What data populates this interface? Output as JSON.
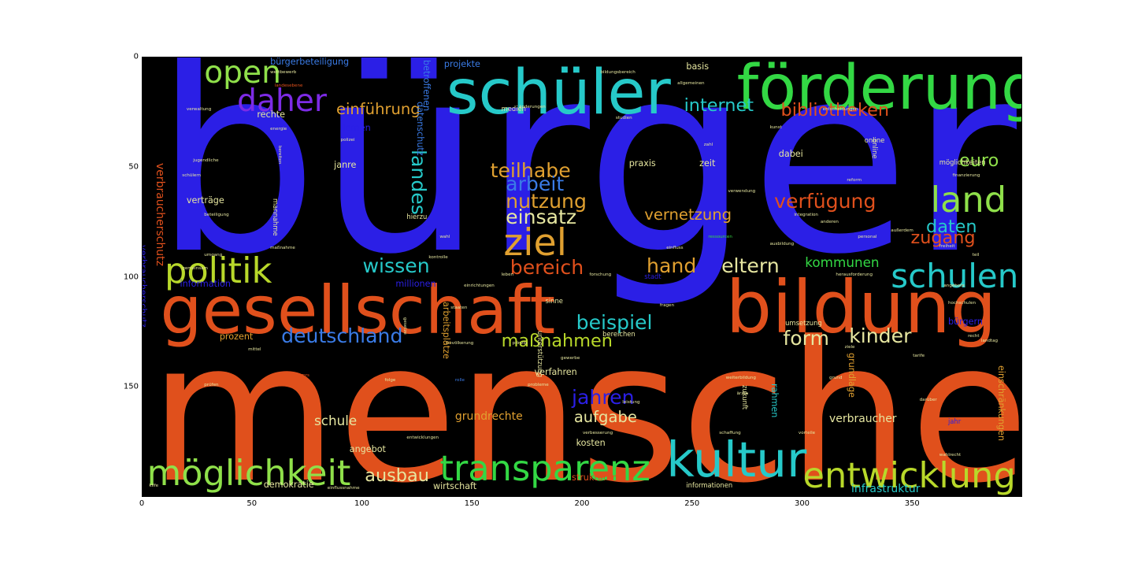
{
  "chart_data": {
    "type": "wordcloud",
    "xlim": [
      0,
      400
    ],
    "ylim": [
      200,
      0
    ],
    "x_ticks": [
      "0",
      "50",
      "100",
      "150",
      "200",
      "250",
      "300",
      "350"
    ],
    "y_ticks": [
      "0",
      "50",
      "100",
      "150"
    ],
    "grid": false,
    "words": [
      {
        "text": "bürger",
        "x": 5,
        "y": -12,
        "size": 118,
        "color": "#2b1fe6"
      },
      {
        "text": "menschen",
        "x": 3,
        "y": 118,
        "size": 88,
        "color": "#e0501c"
      },
      {
        "text": "gesellschaft",
        "x": 8,
        "y": 100,
        "size": 30,
        "color": "#e0501c"
      },
      {
        "text": "bildung",
        "x": 265,
        "y": 97,
        "size": 33,
        "color": "#e0501c"
      },
      {
        "text": "schüler",
        "x": 138,
        "y": 2,
        "size": 28,
        "color": "#26c9c9"
      },
      {
        "text": "förderung",
        "x": 270,
        "y": 0,
        "size": 28,
        "color": "#33d844"
      },
      {
        "text": "kultur",
        "x": 238,
        "y": 172,
        "size": 22,
        "color": "#26c9c9"
      },
      {
        "text": "entwicklung",
        "x": 300,
        "y": 182,
        "size": 16,
        "color": "#b8d82a"
      },
      {
        "text": "möglichkeit",
        "x": 2,
        "y": 181,
        "size": 16,
        "color": "#8fe04a"
      },
      {
        "text": "transparenz",
        "x": 135,
        "y": 179,
        "size": 16,
        "color": "#33d844"
      },
      {
        "text": "schulen",
        "x": 340,
        "y": 92,
        "size": 15,
        "color": "#26c9c9"
      },
      {
        "text": "politik",
        "x": 10,
        "y": 89,
        "size": 16,
        "color": "#b8d82a"
      },
      {
        "text": "ziel",
        "x": 164,
        "y": 76,
        "size": 17,
        "color": "#e0a030"
      },
      {
        "text": "land",
        "x": 358,
        "y": 57,
        "size": 16,
        "color": "#8fe04a"
      },
      {
        "text": "open",
        "x": 28,
        "y": 0,
        "size": 14,
        "color": "#8fe04a"
      },
      {
        "text": "daher",
        "x": 43,
        "y": 13,
        "size": 14,
        "color": "#7d2be6"
      },
      {
        "text": "deutschland",
        "x": 63,
        "y": 122,
        "size": 9,
        "color": "#3a7be6"
      },
      {
        "text": "beispiel",
        "x": 197,
        "y": 116,
        "size": 9,
        "color": "#26c9c9"
      },
      {
        "text": "maßnahmen",
        "x": 163,
        "y": 125,
        "size": 8,
        "color": "#b8d82a"
      },
      {
        "text": "form",
        "x": 291,
        "y": 123,
        "size": 9,
        "color": "#e6e6a0"
      },
      {
        "text": "kinder",
        "x": 321,
        "y": 122,
        "size": 9,
        "color": "#e6e6a0"
      },
      {
        "text": "wissen",
        "x": 100,
        "y": 90,
        "size": 9,
        "color": "#26c9c9"
      },
      {
        "text": "bereich",
        "x": 167,
        "y": 91,
        "size": 9,
        "color": "#e0501c"
      },
      {
        "text": "hand",
        "x": 229,
        "y": 90,
        "size": 9,
        "color": "#e0a030"
      },
      {
        "text": "eltern",
        "x": 263,
        "y": 90,
        "size": 9,
        "color": "#e6e6a0"
      },
      {
        "text": "kommunen",
        "x": 301,
        "y": 90,
        "size": 6,
        "color": "#33d844"
      },
      {
        "text": "daten",
        "x": 356,
        "y": 73,
        "size": 8,
        "color": "#26c9c9"
      },
      {
        "text": "zugang",
        "x": 349,
        "y": 78,
        "size": 8,
        "color": "#e0501c"
      },
      {
        "text": "euro",
        "x": 371,
        "y": 43,
        "size": 8,
        "color": "#8fe04a"
      },
      {
        "text": "verfügung",
        "x": 287,
        "y": 61,
        "size": 9,
        "color": "#e0501c"
      },
      {
        "text": "vernetzung",
        "x": 228,
        "y": 68,
        "size": 7,
        "color": "#e0a030"
      },
      {
        "text": "teilhabe",
        "x": 158,
        "y": 47,
        "size": 9,
        "color": "#e0a030"
      },
      {
        "text": "arbeit",
        "x": 165,
        "y": 53,
        "size": 9,
        "color": "#3a7be6"
      },
      {
        "text": "nutzung",
        "x": 165,
        "y": 61,
        "size": 9,
        "color": "#e0a030"
      },
      {
        "text": "einsatz",
        "x": 165,
        "y": 68,
        "size": 9,
        "color": "#e6e6a0"
      },
      {
        "text": "internet",
        "x": 246,
        "y": 18,
        "size": 8,
        "color": "#26c9c9"
      },
      {
        "text": "bibliotheken",
        "x": 290,
        "y": 20,
        "size": 8,
        "color": "#e0501c"
      },
      {
        "text": "einführung",
        "x": 88,
        "y": 20,
        "size": 7,
        "color": "#e0a030"
      },
      {
        "text": "jahren",
        "x": 195,
        "y": 150,
        "size": 9,
        "color": "#2b1fe6"
      },
      {
        "text": "aufgabe",
        "x": 196,
        "y": 160,
        "size": 7,
        "color": "#e6e6a0"
      },
      {
        "text": "ausbau",
        "x": 101,
        "y": 186,
        "size": 8,
        "color": "#e6e6a0"
      },
      {
        "text": "schule",
        "x": 78,
        "y": 162,
        "size": 6,
        "color": "#e6e6a0"
      },
      {
        "text": "grundrechte",
        "x": 142,
        "y": 161,
        "size": 5,
        "color": "#e0a030"
      },
      {
        "text": "verbraucher",
        "x": 312,
        "y": 162,
        "size": 5,
        "color": "#e6e6a0"
      },
      {
        "text": "infrastruktur",
        "x": 322,
        "y": 194,
        "size": 5,
        "color": "#26c9c9"
      },
      {
        "text": "demokratie",
        "x": 55,
        "y": 192,
        "size": 4,
        "color": "#e6e6a0"
      },
      {
        "text": "wirtschaft",
        "x": 132,
        "y": 193,
        "size": 4,
        "color": "#e6e6a0"
      },
      {
        "text": "angebot",
        "x": 94,
        "y": 176,
        "size": 4,
        "color": "#e6e6a0"
      },
      {
        "text": "kosten",
        "x": 197,
        "y": 173,
        "size": 4,
        "color": "#e6e6a0"
      },
      {
        "text": "strukturen",
        "x": 195,
        "y": 189,
        "size": 4,
        "color": "#e0501c"
      },
      {
        "text": "informationen",
        "x": 247,
        "y": 193,
        "size": 3,
        "color": "#e6e6a0"
      },
      {
        "text": "verfahren",
        "x": 178,
        "y": 141,
        "size": 4,
        "color": "#e6e6a0"
      },
      {
        "text": "prozent",
        "x": 35,
        "y": 125,
        "size": 4,
        "color": "#e0a030"
      },
      {
        "text": "millionen",
        "x": 115,
        "y": 101,
        "size": 4,
        "color": "#2b1fe6"
      },
      {
        "text": "information",
        "x": 17,
        "y": 101,
        "size": 4,
        "color": "#2b1fe6"
      },
      {
        "text": "praxis",
        "x": 221,
        "y": 46,
        "size": 4,
        "color": "#e6e6a0"
      },
      {
        "text": "zeit",
        "x": 253,
        "y": 46,
        "size": 4,
        "color": "#e6e6a0"
      },
      {
        "text": "dabei",
        "x": 289,
        "y": 42,
        "size": 4,
        "color": "#e6e6a0"
      },
      {
        "text": "verträge",
        "x": 20,
        "y": 63,
        "size": 4,
        "color": "#e6e6a0"
      },
      {
        "text": "janre",
        "x": 87,
        "y": 47,
        "size": 4,
        "color": "#e6e6a0"
      },
      {
        "text": "lernen",
        "x": 91,
        "y": 30,
        "size": 4,
        "color": "#2b1fe6"
      },
      {
        "text": "rechte",
        "x": 52,
        "y": 24,
        "size": 4,
        "color": "#e6e6a0"
      },
      {
        "text": "basis",
        "x": 247,
        "y": 2,
        "size": 4,
        "color": "#e6e6a0"
      },
      {
        "text": "projekte",
        "x": 137,
        "y": 1,
        "size": 4,
        "color": "#3a7be6"
      },
      {
        "text": "bürgerbeteiligung",
        "x": 58,
        "y": 0,
        "size": 4,
        "color": "#3a7be6"
      },
      {
        "text": "medien",
        "x": 163,
        "y": 22,
        "size": 3,
        "color": "#e6e6a0"
      },
      {
        "text": "hierzu",
        "x": 120,
        "y": 71,
        "size": 3,
        "color": "#e6e6a0"
      },
      {
        "text": "umsetzung",
        "x": 292,
        "y": 119,
        "size": 3,
        "color": "#e6e6a0"
      },
      {
        "text": "bereichen",
        "x": 209,
        "y": 124,
        "size": 3,
        "color": "#e6e6a0"
      },
      {
        "text": "bürgern",
        "x": 366,
        "y": 118,
        "size": 4,
        "color": "#2b1fe6"
      },
      {
        "text": "möglichkeiten",
        "x": 362,
        "y": 46,
        "size": 3,
        "color": "#e6e6a0"
      },
      {
        "text": "jahr",
        "x": 366,
        "y": 164,
        "size": 3,
        "color": "#2b1fe6"
      },
      {
        "text": "grund",
        "x": 312,
        "y": 145,
        "size": 2,
        "color": "#e6e6a0"
      },
      {
        "text": "sinne",
        "x": 183,
        "y": 109,
        "size": 3,
        "color": "#e6e6a0"
      },
      {
        "text": "folge",
        "x": 110,
        "y": 146,
        "size": 2,
        "color": "#e6e6a0"
      },
      {
        "text": "rolle",
        "x": 142,
        "y": 146,
        "size": 2,
        "color": "#3a7be6"
      },
      {
        "text": "probleme",
        "x": 175,
        "y": 148,
        "size": 2,
        "color": "#e6e6a0"
      },
      {
        "text": "ziele",
        "x": 319,
        "y": 131,
        "size": 2,
        "color": "#e6e6a0"
      },
      {
        "text": "mittel",
        "x": 48,
        "y": 132,
        "size": 2,
        "color": "#e6e6a0"
      },
      {
        "text": "kilfe",
        "x": 3,
        "y": 194,
        "size": 2,
        "color": "#e6e6a0"
      },
      {
        "text": "online",
        "x": 328,
        "y": 36,
        "size": 3,
        "color": "#e6e6a0"
      },
      {
        "text": "stadt",
        "x": 228,
        "y": 98,
        "size": 3,
        "color": "#2b1fe6"
      },
      {
        "text": "teil",
        "x": 377,
        "y": 89,
        "size": 2,
        "color": "#e6e6a0"
      },
      {
        "text": "angebote",
        "x": 364,
        "y": 103,
        "size": 2,
        "color": "#e6e6a0"
      },
      {
        "text": "darüber",
        "x": 353,
        "y": 155,
        "size": 2,
        "color": "#e6e6a0"
      },
      {
        "text": "wahlrecht",
        "x": 362,
        "y": 180,
        "size": 2,
        "color": "#e6e6a0"
      },
      {
        "text": "reform",
        "x": 320,
        "y": 55,
        "size": 2,
        "color": "#e6e6a0"
      },
      {
        "text": "finanzierung",
        "x": 368,
        "y": 53,
        "size": 2,
        "color": "#e6e6a0"
      },
      {
        "text": "freiheit",
        "x": 362,
        "y": 85,
        "size": 2,
        "color": "#e6e6a0"
      },
      {
        "text": "hochschulen",
        "x": 366,
        "y": 111,
        "size": 2,
        "color": "#e6e6a0"
      },
      {
        "text": "personal",
        "x": 325,
        "y": 81,
        "size": 2,
        "color": "#e6e6a0"
      },
      {
        "text": "ressourcen",
        "x": 257,
        "y": 81,
        "size": 2,
        "color": "#33d844"
      },
      {
        "text": "integration",
        "x": 296,
        "y": 71,
        "size": 2,
        "color": "#e6e6a0"
      },
      {
        "text": "schaffung",
        "x": 262,
        "y": 170,
        "size": 2,
        "color": "#e6e6a0"
      },
      {
        "text": "verbesserung",
        "x": 200,
        "y": 170,
        "size": 2,
        "color": "#e6e6a0"
      },
      {
        "text": "vorteile",
        "x": 298,
        "y": 170,
        "size": 2,
        "color": "#e6e6a0"
      },
      {
        "text": "bevölkerung",
        "x": 138,
        "y": 129,
        "size": 2,
        "color": "#e6e6a0"
      },
      {
        "text": "prinzip",
        "x": 168,
        "y": 129,
        "size": 2,
        "color": "#e6e6a0"
      },
      {
        "text": "gewerbe",
        "x": 190,
        "y": 136,
        "size": 2,
        "color": "#e6e6a0"
      },
      {
        "text": "leben",
        "x": 163,
        "y": 98,
        "size": 2,
        "color": "#e6e6a0"
      },
      {
        "text": "polizei",
        "x": 90,
        "y": 37,
        "size": 2,
        "color": "#e6e6a0"
      },
      {
        "text": "energie",
        "x": 58,
        "y": 32,
        "size": 2,
        "color": "#e6e6a0"
      },
      {
        "text": "jugendliche",
        "x": 23,
        "y": 46,
        "size": 2,
        "color": "#e6e6a0"
      },
      {
        "text": "schülern",
        "x": 18,
        "y": 53,
        "size": 2,
        "color": "#e6e6a0"
      },
      {
        "text": "verwaltung",
        "x": 20,
        "y": 23,
        "size": 2,
        "color": "#e6e6a0"
      },
      {
        "text": "wettbewerb",
        "x": 58,
        "y": 6,
        "size": 2,
        "color": "#e6e6a0"
      },
      {
        "text": "landesebene",
        "x": 60,
        "y": 12,
        "size": 2,
        "color": "#e0501c"
      },
      {
        "text": "bildungsbereich",
        "x": 208,
        "y": 6,
        "size": 2,
        "color": "#e6e6a0"
      },
      {
        "text": "allgemeinen",
        "x": 243,
        "y": 11,
        "size": 2,
        "color": "#e6e6a0"
      },
      {
        "text": "entscheidungen",
        "x": 309,
        "y": 23,
        "size": 2,
        "color": "#e6e6a0"
      },
      {
        "text": "anderen",
        "x": 308,
        "y": 74,
        "size": 2,
        "color": "#e6e6a0"
      },
      {
        "text": "kunst",
        "x": 285,
        "y": 31,
        "size": 2,
        "color": "#e6e6a0"
      },
      {
        "text": "studien",
        "x": 215,
        "y": 27,
        "size": 2,
        "color": "#e6e6a0"
      },
      {
        "text": "änderungen",
        "x": 171,
        "y": 22,
        "size": 2,
        "color": "#e6e6a0"
      },
      {
        "text": "zahl",
        "x": 255,
        "y": 39,
        "size": 2,
        "color": "#e6e6a0"
      },
      {
        "text": "verwendung",
        "x": 266,
        "y": 60,
        "size": 2,
        "color": "#e6e6a0"
      },
      {
        "text": "herausforderung",
        "x": 315,
        "y": 98,
        "size": 2,
        "color": "#e6e6a0"
      },
      {
        "text": "einrichtungen",
        "x": 146,
        "y": 103,
        "size": 2,
        "color": "#e6e6a0"
      },
      {
        "text": "gemeinsam",
        "x": 18,
        "y": 95,
        "size": 2,
        "color": "#e6e6a0"
      },
      {
        "text": "kontrolle",
        "x": 130,
        "y": 90,
        "size": 2,
        "color": "#e6e6a0"
      },
      {
        "text": "landtag",
        "x": 381,
        "y": 128,
        "size": 2,
        "color": "#e6e6a0"
      },
      {
        "text": "recht",
        "x": 375,
        "y": 126,
        "size": 2,
        "color": "#e6e6a0"
      },
      {
        "text": "beteiligung",
        "x": 28,
        "y": 71,
        "size": 2,
        "color": "#e6e6a0"
      },
      {
        "text": "umgang",
        "x": 28,
        "y": 89,
        "size": 2,
        "color": "#e6e6a0"
      },
      {
        "text": "entwicklungen",
        "x": 120,
        "y": 172,
        "size": 2,
        "color": "#e6e6a0"
      },
      {
        "text": "maßnahme",
        "x": 58,
        "y": 86,
        "size": 2,
        "color": "#e6e6a0"
      },
      {
        "text": "prüfen",
        "x": 28,
        "y": 148,
        "size": 2,
        "color": "#e6e6a0"
      },
      {
        "text": "mrs",
        "x": 72,
        "y": 144,
        "size": 2,
        "color": "#e0501c"
      },
      {
        "text": "wahl",
        "x": 135,
        "y": 81,
        "size": 2,
        "color": "#e6e6a0"
      },
      {
        "text": "außerdem",
        "x": 340,
        "y": 78,
        "size": 2,
        "color": "#e6e6a0"
      },
      {
        "text": "ausbildung",
        "x": 285,
        "y": 84,
        "size": 2,
        "color": "#e6e6a0"
      },
      {
        "text": "einfluss",
        "x": 238,
        "y": 86,
        "size": 2,
        "color": "#e6e6a0"
      },
      {
        "text": "forschung",
        "x": 203,
        "y": 98,
        "size": 2,
        "color": "#e6e6a0"
      },
      {
        "text": "fragen",
        "x": 235,
        "y": 112,
        "size": 2,
        "color": "#e6e6a0"
      },
      {
        "text": "staaten",
        "x": 140,
        "y": 113,
        "size": 2,
        "color": "#e6e6a0"
      },
      {
        "text": "leistung",
        "x": 218,
        "y": 156,
        "size": 2,
        "color": "#e6e6a0"
      },
      {
        "text": "einflussnahme",
        "x": 84,
        "y": 195,
        "size": 2,
        "color": "#e6e6a0"
      },
      {
        "text": "ärzte",
        "x": 270,
        "y": 152,
        "size": 2,
        "color": "#e6e6a0"
      },
      {
        "text": "tarife",
        "x": 350,
        "y": 135,
        "size": 2,
        "color": "#e6e6a0"
      },
      {
        "text": "weiterbildung",
        "x": 265,
        "y": 145,
        "size": 2,
        "color": "#e6e6a0"
      }
    ],
    "vertical_words": [
      {
        "text": "verbraucherschutz",
        "x": 10,
        "y": 48,
        "size": 5,
        "color": "#e0501c"
      },
      {
        "text": "verbraucherschutz",
        "x": 2,
        "y": 85,
        "size": 4,
        "color": "#2b1fe6"
      },
      {
        "text": "landes",
        "x": 130,
        "y": 42,
        "size": 9,
        "color": "#26c9c9"
      },
      {
        "text": "grundlage",
        "x": 324,
        "y": 134,
        "size": 4,
        "color": "#e0a030"
      },
      {
        "text": "einschränkungen",
        "x": 392,
        "y": 140,
        "size": 4,
        "color": "#e0a030"
      },
      {
        "text": "rahmen",
        "x": 289,
        "y": 148,
        "size": 4,
        "color": "#26c9c9"
      },
      {
        "text": "datenschutz",
        "x": 128,
        "y": 20,
        "size": 4,
        "color": "#3a7be6"
      },
      {
        "text": "betroffenen",
        "x": 131,
        "y": 1,
        "size": 4,
        "color": "#3a7be6"
      },
      {
        "text": "arbeitsplätze",
        "x": 140,
        "y": 111,
        "size": 4,
        "color": "#e0a030"
      },
      {
        "text": "zukunft",
        "x": 275,
        "y": 149,
        "size": 3,
        "color": "#e6e6a0"
      },
      {
        "text": "mannahme",
        "x": 62,
        "y": 64,
        "size": 3,
        "color": "#e6e6a0"
      },
      {
        "text": "bereiten",
        "x": 63,
        "y": 40,
        "size": 2,
        "color": "#e6e6a0"
      },
      {
        "text": "online",
        "x": 334,
        "y": 37,
        "size": 3,
        "color": "#e6e6a0"
      },
      {
        "text": "gesetze",
        "x": 120,
        "y": 118,
        "size": 2,
        "color": "#e6e6a0"
      },
      {
        "text": "unterstützung",
        "x": 182,
        "y": 124,
        "size": 3,
        "color": "#e6e6a0"
      }
    ]
  }
}
